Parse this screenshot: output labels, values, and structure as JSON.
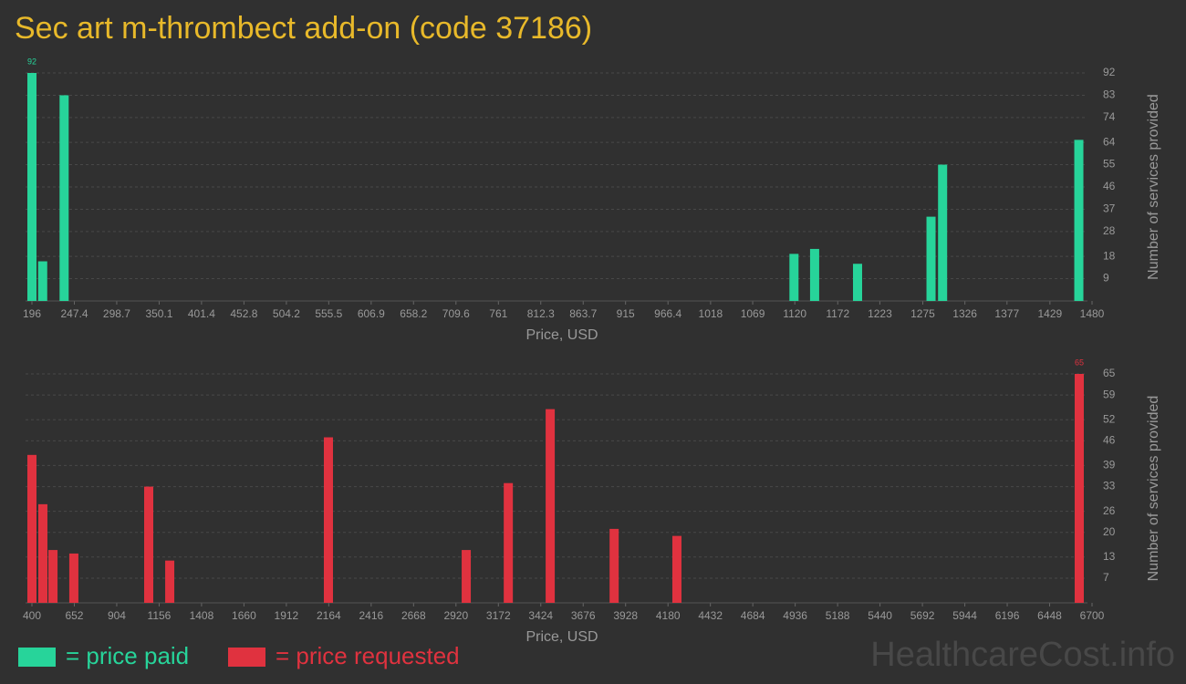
{
  "title": "Sec art m-thrombect add-on (code 37186)",
  "watermark": "HealthcareCost.info",
  "chart_data": [
    {
      "type": "bar",
      "xlabel": "Price, USD",
      "ylabel": "Number of services provided",
      "xlim": [
        196,
        1480
      ],
      "xticks": [
        196,
        247.4,
        298.7,
        350.1,
        401.4,
        452.8,
        504.2,
        555.5,
        606.9,
        658.2,
        709.6,
        761,
        812.3,
        863.7,
        915,
        966.4,
        1018,
        1069,
        1120,
        1172,
        1223,
        1275,
        1326,
        1377,
        1429,
        1480
      ],
      "ylim": [
        0,
        92
      ],
      "yticks": [
        9,
        18,
        28,
        37,
        46,
        55,
        64,
        74,
        83,
        92
      ],
      "grid": true,
      "x": [
        196,
        209,
        235,
        1119,
        1144,
        1196,
        1285,
        1299,
        1464
      ],
      "series": [
        {
          "name": "= price paid",
          "color": "#27d49a",
          "values": [
            92,
            16,
            83,
            19,
            21,
            15,
            34,
            55,
            65
          ]
        }
      ]
    },
    {
      "type": "bar",
      "xlabel": "Price, USD",
      "ylabel": "Number of services provided",
      "xlim": [
        400,
        6700
      ],
      "xticks": [
        400,
        652,
        904,
        1156,
        1408,
        1660,
        1912,
        2164,
        2416,
        2668,
        2920,
        3172,
        3424,
        3676,
        3928,
        4180,
        4432,
        4684,
        4936,
        5188,
        5440,
        5692,
        5944,
        6196,
        6448,
        6700
      ],
      "ylim": [
        0,
        65
      ],
      "yticks": [
        7,
        13,
        20,
        26,
        33,
        39,
        46,
        52,
        59,
        65
      ],
      "grid": true,
      "x": [
        400,
        465,
        525,
        649,
        1094,
        1219,
        2162,
        2981,
        3231,
        3480,
        3860,
        4233,
        6624
      ],
      "series": [
        {
          "name": "= price requested",
          "color": "#e0323f",
          "values": [
            42,
            28,
            15,
            14,
            33,
            12,
            47,
            15,
            34,
            55,
            21,
            19,
            65
          ]
        }
      ]
    }
  ]
}
